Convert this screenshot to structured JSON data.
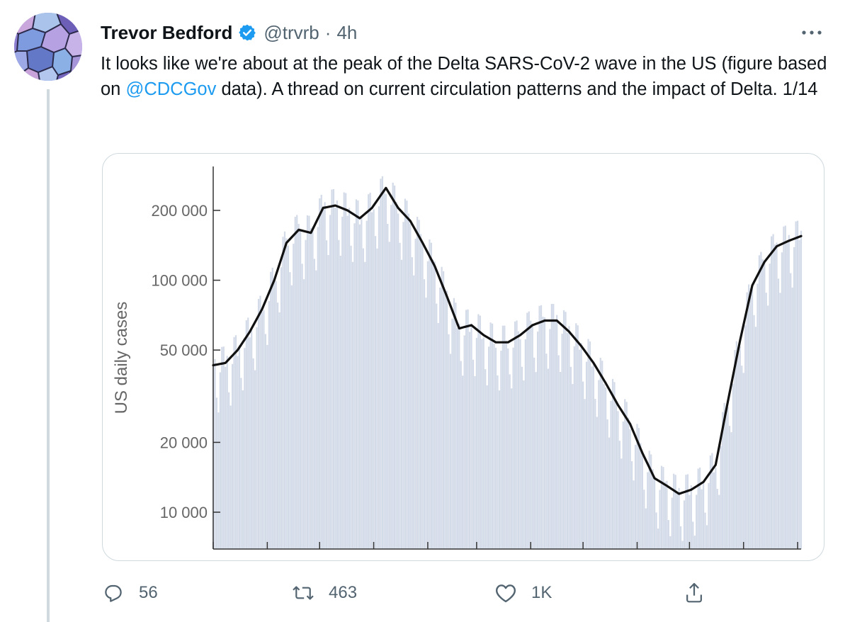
{
  "tweet": {
    "author_name": "Trevor Bedford",
    "handle": "@trvrb",
    "separator": "·",
    "time": "4h",
    "more_icon": "more-horizontal-icon",
    "text_part1": "It looks like we're about at the peak of the Delta SARS-CoV-2 wave in the US (figure based on ",
    "mention": "@CDCGov",
    "text_part2": " data). A thread on current circulation patterns and the impact of Delta. 1/14"
  },
  "actions": {
    "reply_count": "56",
    "retweet_count": "463",
    "like_count": "1K",
    "icons": [
      "reply-icon",
      "retweet-icon",
      "like-icon",
      "share-icon"
    ]
  },
  "colors": {
    "accent": "#1d9bf0",
    "bar_fill": "#d3dae8",
    "line": "#111111",
    "muted_text": "#536471"
  },
  "chart_data": {
    "type": "bar",
    "scale": "log",
    "ylabel": "US daily cases",
    "yticks": [
      10000,
      20000,
      50000,
      100000,
      200000
    ],
    "ytick_labels": [
      "10 000",
      "20 000",
      "50 000",
      "100 000",
      "200 000"
    ],
    "x_date_range": [
      "2020-10-01",
      "2021-09-03"
    ],
    "series": [
      {
        "type": "line",
        "points": [
          [
            "2020-10-01",
            43000
          ],
          [
            "2020-10-08",
            44000
          ],
          [
            "2020-10-15",
            50000
          ],
          [
            "2020-10-22",
            60000
          ],
          [
            "2020-10-29",
            75000
          ],
          [
            "2020-11-05",
            100000
          ],
          [
            "2020-11-12",
            145000
          ],
          [
            "2020-11-19",
            165000
          ],
          [
            "2020-11-26",
            160000
          ],
          [
            "2020-12-03",
            205000
          ],
          [
            "2020-12-10",
            210000
          ],
          [
            "2020-12-17",
            200000
          ],
          [
            "2020-12-24",
            185000
          ],
          [
            "2020-12-31",
            205000
          ],
          [
            "2021-01-08",
            250000
          ],
          [
            "2021-01-15",
            205000
          ],
          [
            "2021-01-22",
            180000
          ],
          [
            "2021-01-29",
            145000
          ],
          [
            "2021-02-05",
            115000
          ],
          [
            "2021-02-12",
            85000
          ],
          [
            "2021-02-19",
            62000
          ],
          [
            "2021-02-26",
            64000
          ],
          [
            "2021-03-05",
            58000
          ],
          [
            "2021-03-12",
            54000
          ],
          [
            "2021-03-19",
            54000
          ],
          [
            "2021-03-26",
            58000
          ],
          [
            "2021-04-02",
            64000
          ],
          [
            "2021-04-09",
            67000
          ],
          [
            "2021-04-16",
            67000
          ],
          [
            "2021-04-23",
            60000
          ],
          [
            "2021-04-30",
            52000
          ],
          [
            "2021-05-07",
            44000
          ],
          [
            "2021-05-14",
            36000
          ],
          [
            "2021-05-21",
            29000
          ],
          [
            "2021-05-28",
            24000
          ],
          [
            "2021-06-04",
            18000
          ],
          [
            "2021-06-11",
            14000
          ],
          [
            "2021-06-18",
            13000
          ],
          [
            "2021-06-25",
            12000
          ],
          [
            "2021-07-02",
            12500
          ],
          [
            "2021-07-09",
            13500
          ],
          [
            "2021-07-16",
            16000
          ],
          [
            "2021-07-23",
            30000
          ],
          [
            "2021-07-30",
            55000
          ],
          [
            "2021-08-06",
            95000
          ],
          [
            "2021-08-13",
            120000
          ],
          [
            "2021-08-20",
            140000
          ],
          [
            "2021-08-27",
            148000
          ],
          [
            "2021-09-03",
            155000
          ]
        ]
      }
    ]
  }
}
